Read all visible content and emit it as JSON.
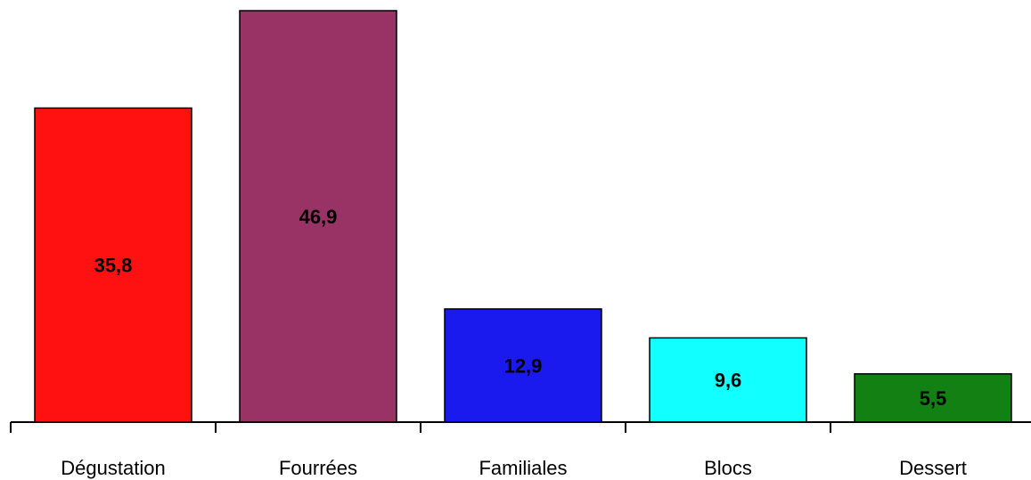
{
  "chart_data": {
    "type": "bar",
    "title": "",
    "xlabel": "",
    "ylabel": "",
    "categories": [
      "Dégustation",
      "Fourrées",
      "Familiales",
      "Blocs",
      "Dessert"
    ],
    "values": [
      35.8,
      46.9,
      12.9,
      9.6,
      5.5
    ],
    "value_labels": [
      "35,8",
      "46,9",
      "12,9",
      "9,6",
      "5,5"
    ],
    "colors": [
      "#ff1111",
      "#993366",
      "#1a1aee",
      "#11ffff",
      "#138013"
    ],
    "ylim": [
      0,
      46.9
    ],
    "grid": false,
    "legend": "none"
  }
}
